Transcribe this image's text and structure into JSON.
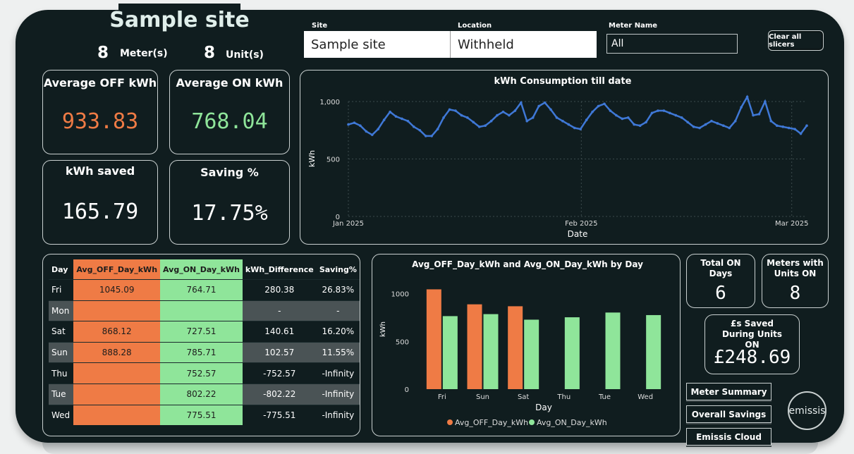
{
  "header": {
    "title": "Sample site",
    "meter_count": "8",
    "meter_label": "Meter(s)",
    "unit_count": "8",
    "unit_label": "Unit(s)"
  },
  "slicers": {
    "site_label": "Site",
    "site_value": "Sample site",
    "location_label": "Location",
    "location_value": "Withheld",
    "meter_label": "Meter Name",
    "meter_value": "All",
    "clear_label": "Clear all slicers"
  },
  "kpis": {
    "avg_off_title": "Average OFF kWh",
    "avg_off_value": "933.83",
    "avg_on_title": "Average ON kWh",
    "avg_on_value": "768.04",
    "saved_title": "kWh saved",
    "saved_value": "165.79",
    "saving_title": "Saving %",
    "saving_value": "17.75%"
  },
  "colors": {
    "off": "#ef7b45",
    "on": "#8fe59a",
    "line": "#3f78d6",
    "background": "#101d1f"
  },
  "table": {
    "headers": [
      "Day",
      "Avg_OFF_Day_kWh",
      "Avg_ON_Day_kWh",
      "kWh_Difference",
      "Saving%"
    ],
    "rows": [
      [
        "Fri",
        "1045.09",
        "764.71",
        "280.38",
        "26.83%"
      ],
      [
        "Mon",
        "",
        "",
        "-",
        "-"
      ],
      [
        "Sat",
        "868.12",
        "727.51",
        "140.61",
        "16.20%"
      ],
      [
        "Sun",
        "888.28",
        "785.71",
        "102.57",
        "11.55%"
      ],
      [
        "Thu",
        "",
        "752.57",
        "-752.57",
        "-Infinity"
      ],
      [
        "Tue",
        "",
        "802.22",
        "-802.22",
        "-Infinity"
      ],
      [
        "Wed",
        "",
        "775.51",
        "-775.51",
        "-Infinity"
      ]
    ]
  },
  "side_stats": {
    "total_on_title": "Total ON Days",
    "total_on_value": "6",
    "meters_on_title": "Meters with Units ON",
    "meters_on_value": "8",
    "saved_title": "£s Saved During Units ON",
    "saved_value": "£248.69"
  },
  "nav": {
    "meter_summary": "Meter Summary",
    "overall_savings": "Overall Savings",
    "emissis_cloud": "Emissis Cloud",
    "logo_text": "emissis"
  },
  "chart_data": [
    {
      "type": "line",
      "title": "kWh Consumption till date",
      "xlabel": "Date",
      "ylabel": "kWh",
      "ylim": [
        0,
        1000
      ],
      "yticks": [
        "0",
        "500",
        "1,000"
      ],
      "xticks": [
        "Jan 2025",
        "Feb 2025",
        "Mar 2025"
      ],
      "x_start": "2025-01-01",
      "x_end": "2025-03-03",
      "series": [
        {
          "values": [
            800,
            815,
            790,
            740,
            710,
            760,
            840,
            910,
            870,
            850,
            830,
            780,
            750,
            700,
            700,
            760,
            860,
            930,
            920,
            880,
            860,
            820,
            780,
            790,
            830,
            880,
            910,
            880,
            920,
            990,
            830,
            860,
            960,
            990,
            930,
            860,
            830,
            800,
            770,
            760,
            840,
            910,
            960,
            980,
            920,
            880,
            850,
            860,
            800,
            790,
            820,
            900,
            920,
            920,
            900,
            880,
            860,
            820,
            780,
            770,
            800,
            830,
            810,
            790,
            770,
            830,
            950,
            1040,
            880,
            890,
            1000,
            830,
            790,
            780,
            770,
            760,
            720,
            790
          ]
        }
      ],
      "grid": true
    },
    {
      "type": "bar",
      "title": "Avg_OFF_Day_kWh and Avg_ON_Day_kWh by Day",
      "xlabel": "Day",
      "ylabel": "kWh",
      "ylim": [
        0,
        1100
      ],
      "yticks": [
        "0",
        "500",
        "1000"
      ],
      "categories": [
        "Fri",
        "Sun",
        "Sat",
        "Thu",
        "Tue",
        "Wed"
      ],
      "series": [
        {
          "name": "Avg_OFF_Day_kWh",
          "values": [
            1045.09,
            888.28,
            868.12,
            null,
            null,
            null
          ]
        },
        {
          "name": "Avg_ON_Day_kWh",
          "values": [
            764.71,
            785.71,
            727.51,
            752.57,
            802.22,
            775.51
          ]
        }
      ],
      "legend": "bottom"
    }
  ]
}
